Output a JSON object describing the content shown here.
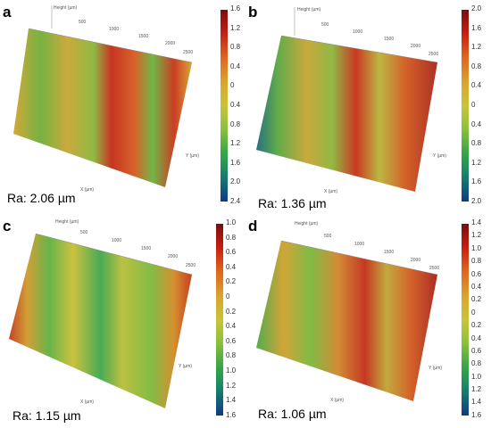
{
  "panels": [
    {
      "id": "a",
      "letter": "a",
      "ra": "Ra: 2.06 µm",
      "scale": [
        "1.6",
        "1.2",
        "0.8",
        "0.4",
        "0",
        "0.4",
        "0.8",
        "1.2",
        "1.6",
        "2.0",
        "2.4"
      ],
      "height_label": "Height (µm)",
      "x_label": "X (µm)",
      "y_label": "Y (µm)",
      "axis_ticks": [
        "500",
        "1000",
        "1500",
        "2000",
        "2500"
      ]
    },
    {
      "id": "b",
      "letter": "b",
      "ra": "Ra: 1.36 µm",
      "scale": [
        "2.0",
        "1.6",
        "1.2",
        "0.8",
        "0.4",
        "0",
        "0.4",
        "0.8",
        "1.2",
        "1.6",
        "2.0"
      ],
      "height_label": "Height (µm)",
      "x_label": "X (µm)",
      "y_label": "Y (µm)",
      "axis_ticks": [
        "500",
        "1000",
        "1500",
        "2000",
        "2500"
      ]
    },
    {
      "id": "c",
      "letter": "c",
      "ra": "Ra: 1.15 µm",
      "scale": [
        "1.0",
        "0.8",
        "0.6",
        "0.4",
        "0.2",
        "0",
        "0.2",
        "0.4",
        "0.6",
        "0.8",
        "1.0",
        "1.2",
        "1.4",
        "1.6"
      ],
      "height_label": "Height (µm)",
      "x_label": "X (µm)",
      "y_label": "Y (µm)",
      "axis_ticks": [
        "500",
        "1000",
        "1500",
        "2000",
        "2500"
      ]
    },
    {
      "id": "d",
      "letter": "d",
      "ra": "Ra: 1.06 µm",
      "scale": [
        "1.4",
        "1.2",
        "1.0",
        "0.8",
        "0.6",
        "0.4",
        "0.2",
        "0",
        "0.2",
        "0.4",
        "0.6",
        "0.8",
        "1.0",
        "1.2",
        "1.4",
        "1.6"
      ],
      "height_label": "Height (µm)",
      "x_label": "X (µm)",
      "y_label": "Y (µm)",
      "axis_ticks": [
        "500",
        "1000",
        "1500",
        "2000",
        "2500"
      ]
    }
  ]
}
